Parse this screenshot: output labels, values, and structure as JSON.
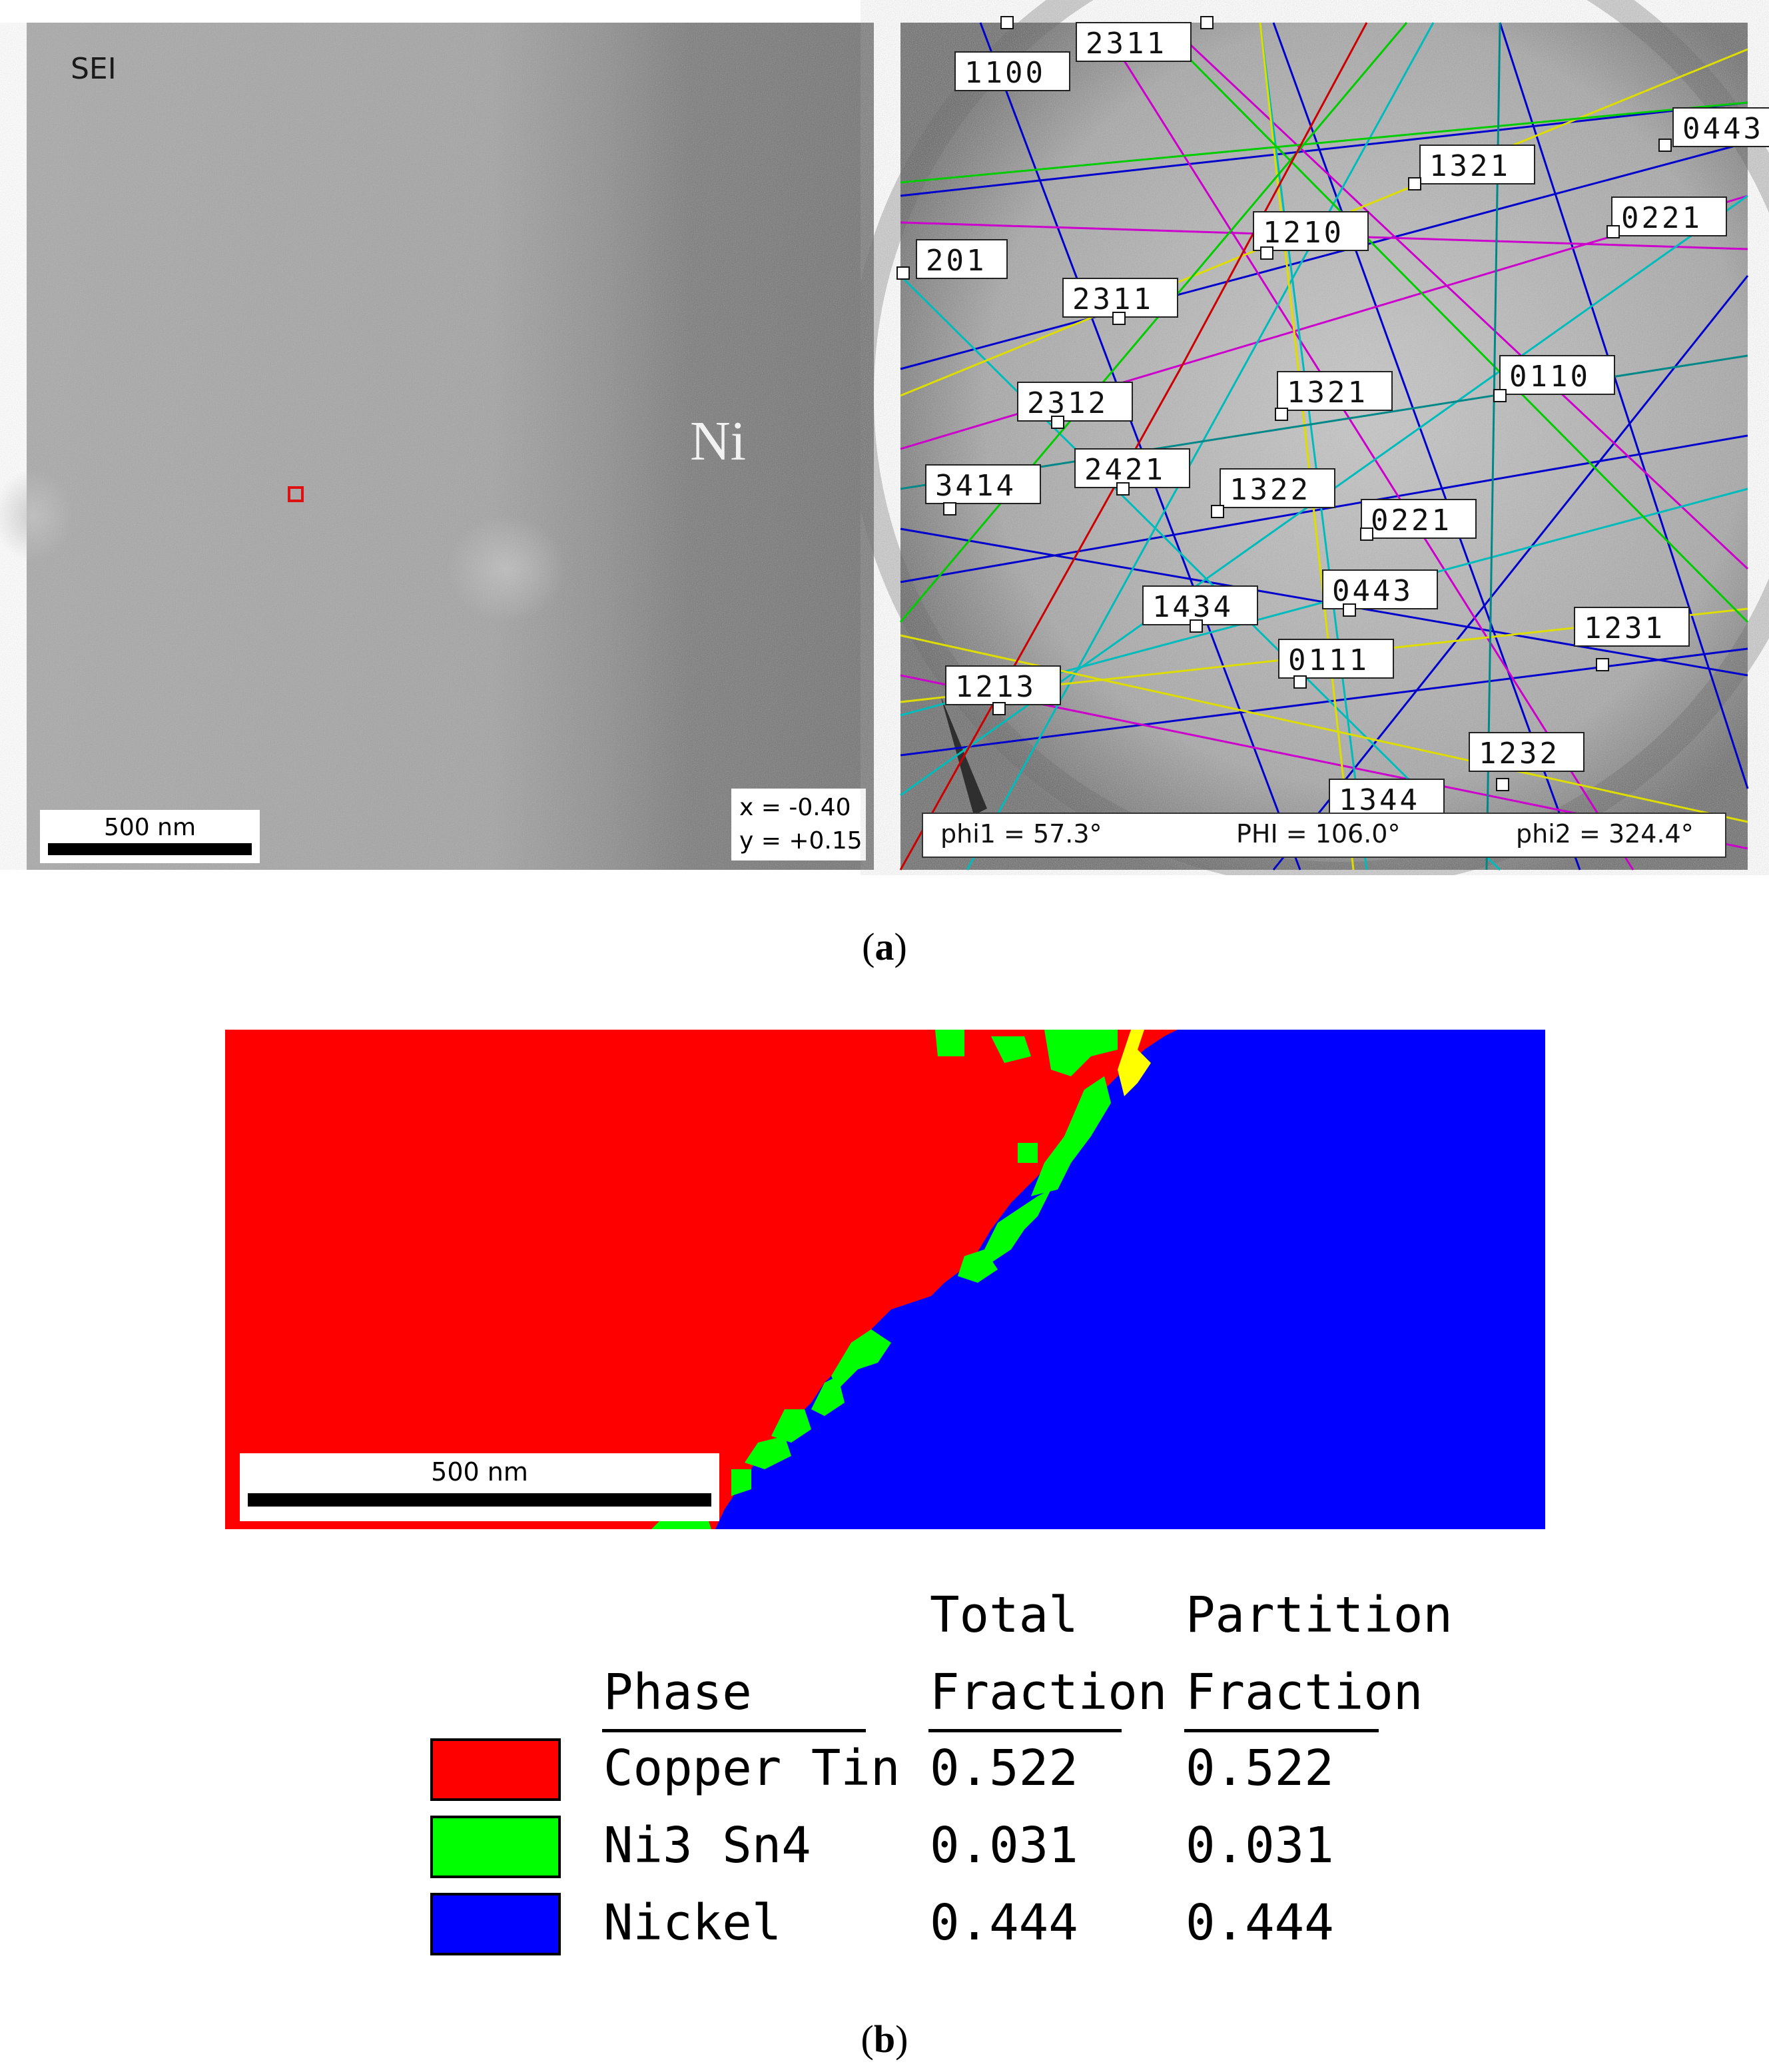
{
  "panel_a": {
    "sem": {
      "mode_label": "SEI",
      "region_label": "Ni",
      "scale_label": "500 nm",
      "coord_x": "x = -0.40",
      "coord_y": "y = +0.15"
    },
    "kikuchi": {
      "indices": [
        {
          "label": "1100"
        },
        {
          "label": "2311",
          "note": "partially cropped at top"
        },
        {
          "label": "0443"
        },
        {
          "label": "1321"
        },
        {
          "label": "0221"
        },
        {
          "label": "1210"
        },
        {
          "label": "201"
        },
        {
          "label": "2311"
        },
        {
          "label": "2312"
        },
        {
          "label": "1321"
        },
        {
          "label": "0110"
        },
        {
          "label": "3414"
        },
        {
          "label": "2421"
        },
        {
          "label": "1322"
        },
        {
          "label": "0221"
        },
        {
          "label": "1434"
        },
        {
          "label": "0443"
        },
        {
          "label": "0111"
        },
        {
          "label": "1231"
        },
        {
          "label": "1213"
        },
        {
          "label": "1232"
        },
        {
          "label": "1344"
        }
      ],
      "phi1": "phi1 = 57.3°",
      "PHI": "PHI = 106.0°",
      "phi2": "phi2 = 324.4°"
    },
    "caption_letter": "a"
  },
  "panel_b": {
    "scale_label": "500 nm",
    "colors": {
      "copper_tin": "#ff0000",
      "ni3sn4": "#00ff00",
      "nickel": "#0000ff",
      "unindexed": "#ffff00"
    },
    "legend": {
      "header_phase": "Phase",
      "header_total_1": "Total",
      "header_total_2": "Fraction",
      "header_partition_1": "Partition",
      "header_partition_2": "Fraction",
      "rows": [
        {
          "phase": "Copper Tin",
          "total": "0.522",
          "partition": "0.522",
          "color": "#ff0000"
        },
        {
          "phase": "Ni3 Sn4",
          "total": "0.031",
          "partition": "0.031",
          "color": "#00ff00"
        },
        {
          "phase": "Nickel",
          "total": "0.444",
          "partition": "0.444",
          "color": "#0000ff"
        }
      ]
    },
    "caption_letter": "b"
  }
}
